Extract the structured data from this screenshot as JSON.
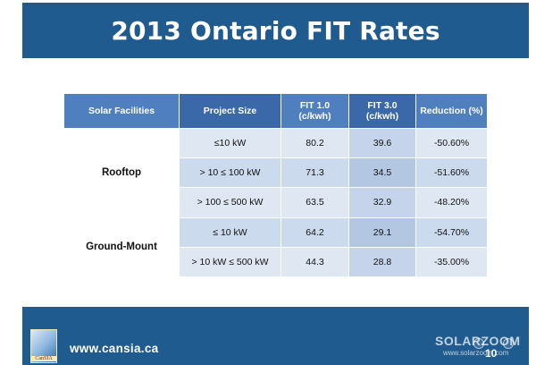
{
  "slide": {
    "title": "2013 Ontario FIT Rates",
    "page_number": "10",
    "website": "www.cansia.ca",
    "logo_text": "CanSIA",
    "watermark": "SOLARZOOM",
    "watermark_url": "www.solarzoom.com"
  },
  "table": {
    "headers": [
      "Solar Facilities",
      "Project Size",
      "FIT 1.0\n(c/kwh)",
      "FIT 3.0\n(c/kwh)",
      "Reduction (%)"
    ],
    "groups": [
      {
        "facility": "Rooftop",
        "rows": [
          {
            "size": "≤10 kW",
            "fit1": "80.2",
            "fit3": "39.6",
            "reduction": "-50.60%"
          },
          {
            "size": "> 10 ≤ 100 kW",
            "fit1": "71.3",
            "fit3": "34.5",
            "reduction": "-51.60%"
          },
          {
            "size": "> 100 ≤ 500 kW",
            "fit1": "63.5",
            "fit3": "32.9",
            "reduction": "-48.20%"
          }
        ]
      },
      {
        "facility": "Ground-Mount",
        "rows": [
          {
            "size": "≤ 10 kW",
            "fit1": "64.2",
            "fit3": "29.1",
            "reduction": "-54.70%"
          },
          {
            "size": "> 10 kW  ≤ 500 kW",
            "fit1": "44.3",
            "fit3": "28.8",
            "reduction": "-35.00%"
          }
        ]
      }
    ]
  }
}
